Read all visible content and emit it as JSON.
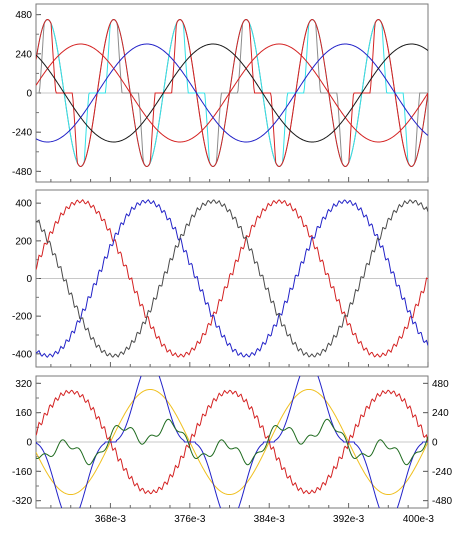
{
  "chart_data": [
    {
      "type": "line",
      "panel": "top",
      "xlim": [
        0.3605,
        0.4
      ],
      "ylim": [
        -545,
        545
      ],
      "y_ticks": [
        -480,
        -240,
        0,
        240,
        480
      ],
      "y_tick_labels": [
        "-480",
        "-240",
        "0",
        "240",
        "480"
      ],
      "grid": false,
      "series": [
        {
          "color": "#8c8c8c",
          "kind": "rectified-switching",
          "amplitude": 450,
          "period": 0.02,
          "phase_deg": 0
        },
        {
          "color": "#33e0e6",
          "kind": "rectified-switching",
          "amplitude": 450,
          "period": 0.02,
          "phase_deg": 120
        },
        {
          "color": "#d42222",
          "kind": "rectified-switching",
          "amplitude": 450,
          "period": 0.02,
          "phase_deg": 240
        },
        {
          "color": "#d42222",
          "kind": "sine",
          "amplitude": 300,
          "period": 0.02,
          "phase_deg": 0
        },
        {
          "color": "#2222c8",
          "kind": "sine",
          "amplitude": 300,
          "period": 0.02,
          "phase_deg": 120
        },
        {
          "color": "#1a1a1a",
          "kind": "sine",
          "amplitude": 300,
          "period": 0.02,
          "phase_deg": 240
        }
      ]
    },
    {
      "type": "line",
      "panel": "middle",
      "xlim": [
        0.3605,
        0.4
      ],
      "ylim": [
        -470,
        470
      ],
      "y_ticks": [
        -400,
        -200,
        0,
        200,
        400
      ],
      "y_tick_labels": [
        "-400",
        "-200",
        "0",
        "200",
        "400"
      ],
      "grid": false,
      "series": [
        {
          "color": "#d42222",
          "kind": "sine-ripple",
          "amplitude": 410,
          "period": 0.02,
          "phase_deg": 0
        },
        {
          "color": "#2222c8",
          "kind": "sine-ripple",
          "amplitude": 410,
          "period": 0.02,
          "phase_deg": 120
        },
        {
          "color": "#4a4a4a",
          "kind": "sine-ripple",
          "amplitude": 410,
          "period": 0.02,
          "phase_deg": 240
        }
      ]
    },
    {
      "type": "line",
      "panel": "bottom",
      "xlim": [
        0.3605,
        0.4
      ],
      "ylim": [
        -360,
        360
      ],
      "y_ticks": [
        -320,
        -160,
        0,
        160,
        320
      ],
      "y_tick_labels": [
        "-320",
        "-160",
        "0",
        "160",
        "320"
      ],
      "y2lim": [
        -540,
        540
      ],
      "y2_ticks": [
        -480,
        -240,
        0,
        240,
        480
      ],
      "y2_tick_labels": [
        "-480",
        "-240",
        "0",
        "240",
        "480"
      ],
      "x_ticks": [
        0.368,
        0.376,
        0.384,
        0.392,
        0.4
      ],
      "x_tick_labels": [
        "368e-3",
        "376e-3",
        "384e-3",
        "392e-3",
        "400e-3"
      ],
      "grid": false,
      "series": [
        {
          "color": "#f0c020",
          "kind": "sine",
          "axis": "right",
          "amplitude": 430,
          "period": 0.016,
          "phase_deg": 0
        },
        {
          "color": "#d42222",
          "kind": "sine-ripple",
          "axis": "left",
          "amplitude": 275,
          "period": 0.016,
          "phase_deg": 180
        },
        {
          "color": "#2222c8",
          "kind": "dip-switching",
          "axis": "left",
          "amplitude": 330,
          "period": 0.016,
          "phase_deg": 0
        },
        {
          "color": "#1f6b1f",
          "kind": "harmonic",
          "axis": "left",
          "amplitude": 120,
          "period": 0.016,
          "phase_deg": 0
        }
      ]
    }
  ]
}
